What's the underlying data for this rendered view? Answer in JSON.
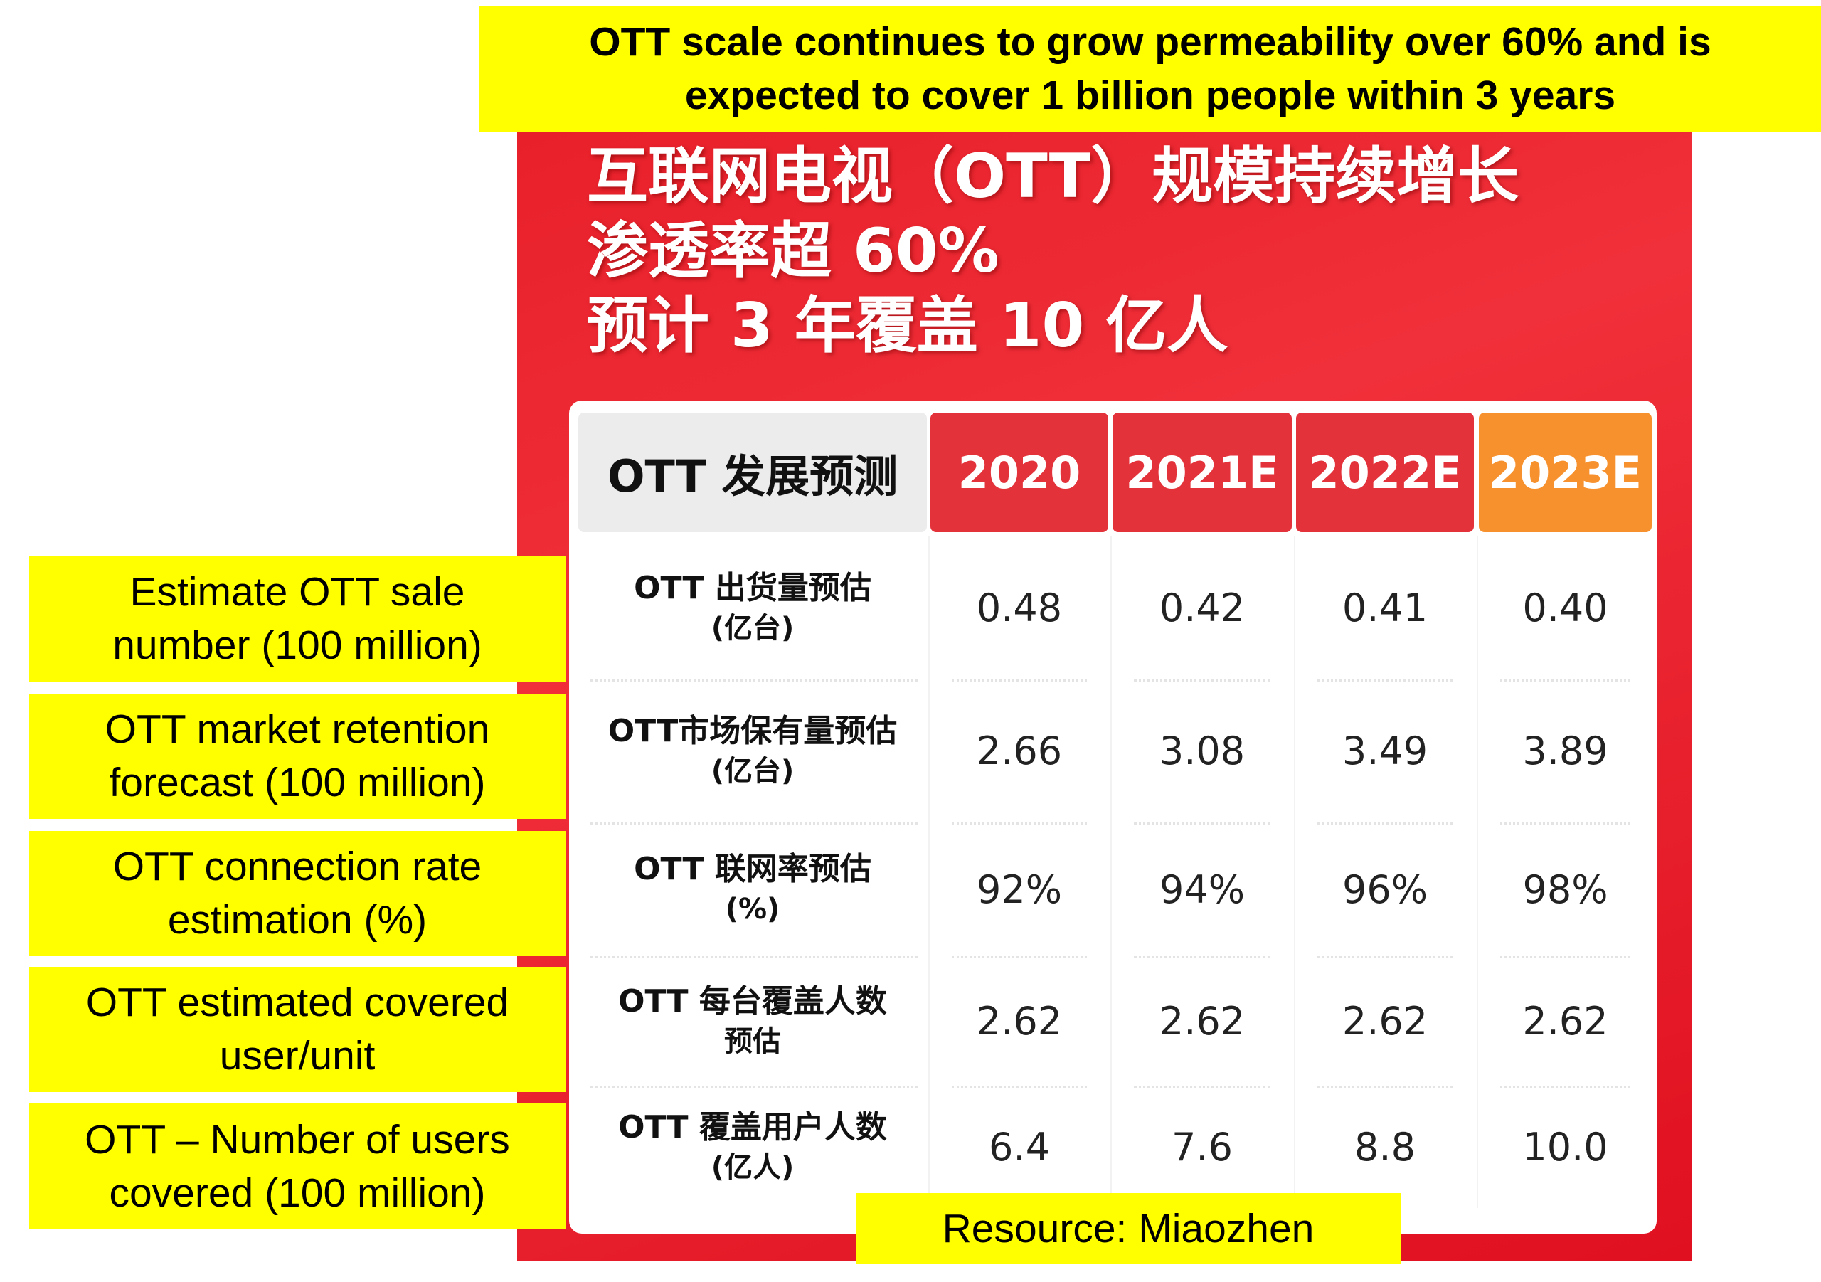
{
  "banner": {
    "line1": "OTT scale continues to grow permeability over 60% and is",
    "line2": "expected to cover 1 billion people within 3 years"
  },
  "cn_title": {
    "line1": "互联网电视（OTT）规模持续增长",
    "line2": "渗透率超 60%",
    "line3": "预计 3 年覆盖 10 亿人"
  },
  "table": {
    "header_label": "OTT 发展预测",
    "years": [
      "2020",
      "2021E",
      "2022E",
      "2023E"
    ],
    "rows": [
      {
        "label1": "OTT 出货量预估",
        "label2": "(亿台)",
        "values": [
          "0.48",
          "0.42",
          "0.41",
          "0.40"
        ]
      },
      {
        "label1": "OTT市场保有量预估",
        "label2": "(亿台)",
        "values": [
          "2.66",
          "3.08",
          "3.49",
          "3.89"
        ]
      },
      {
        "label1": "OTT 联网率预估",
        "label2": "(%)",
        "values": [
          "92%",
          "94%",
          "96%",
          "98%"
        ]
      },
      {
        "label1": "OTT 每台覆盖人数",
        "label2": "预估",
        "values": [
          "2.62",
          "2.62",
          "2.62",
          "2.62"
        ]
      },
      {
        "label1": "OTT 覆盖用户人数",
        "label2": "(亿人)",
        "values": [
          "6.4",
          "7.6",
          "8.8",
          "10.0"
        ]
      }
    ]
  },
  "english_labels": [
    {
      "line1": "Estimate OTT sale",
      "line2": "number (100 million)"
    },
    {
      "line1": "OTT market retention",
      "line2": "forecast (100 million)"
    },
    {
      "line1": "OTT connection rate",
      "line2": "estimation (%)"
    },
    {
      "line1": "OTT estimated covered",
      "line2": "user/unit"
    },
    {
      "line1": "OTT – Number of users",
      "line2": "covered (100 million)"
    }
  ],
  "resource": "Resource: Miaozhen",
  "colors": {
    "highlight": "#ffff00",
    "panel_red": "#e8202a",
    "year_red": "#e3323a",
    "year_orange": "#f7912d"
  }
}
